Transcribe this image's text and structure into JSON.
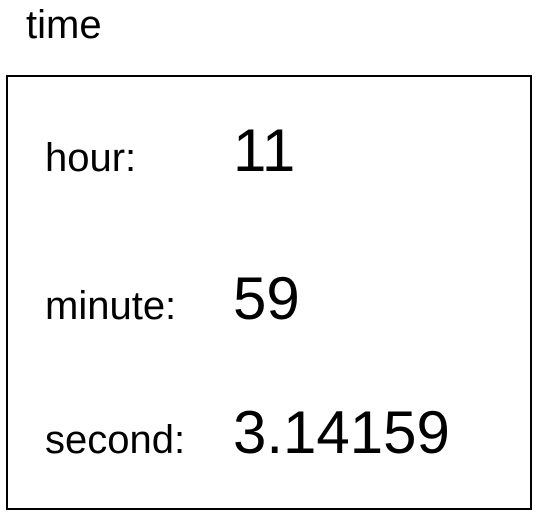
{
  "title": "time",
  "fields": [
    {
      "label": "hour:",
      "value": "11"
    },
    {
      "label": "minute:",
      "value": "59"
    },
    {
      "label": "second:",
      "value": "3.14159"
    }
  ]
}
